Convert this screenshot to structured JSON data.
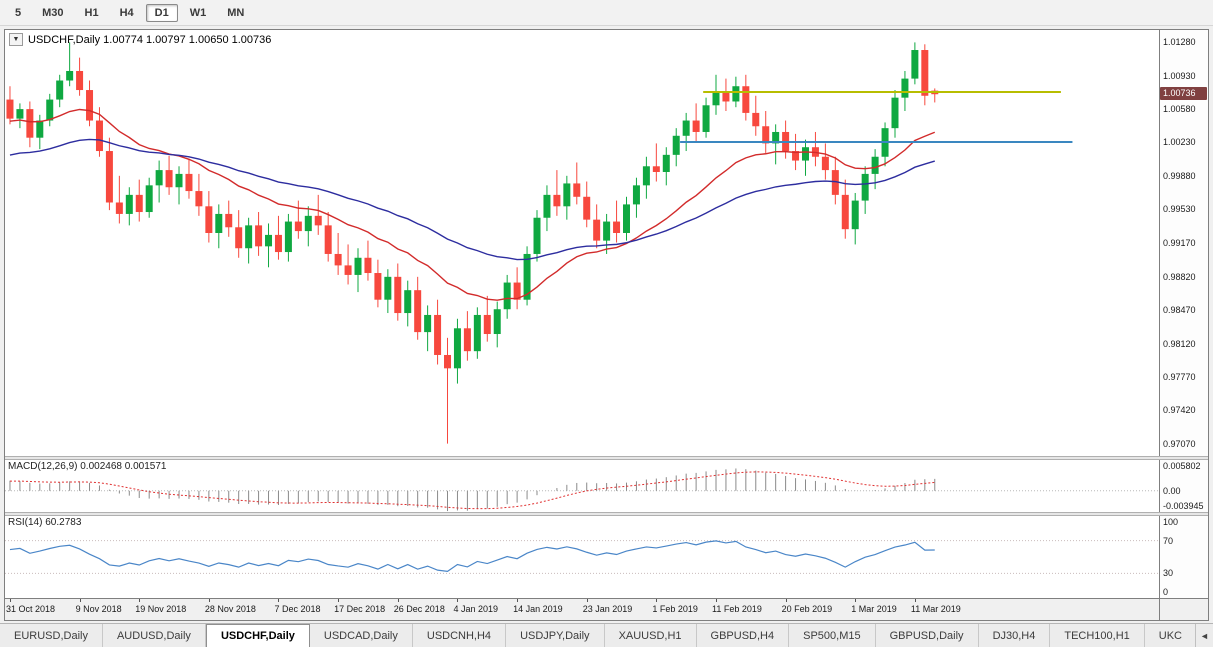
{
  "toolbar": {
    "timeframes": [
      {
        "label": "5",
        "active": false
      },
      {
        "label": "M30",
        "active": false
      },
      {
        "label": "H1",
        "active": false
      },
      {
        "label": "H4",
        "active": false
      },
      {
        "label": "D1",
        "active": true
      },
      {
        "label": "W1",
        "active": false
      },
      {
        "label": "MN",
        "active": false
      }
    ]
  },
  "chart_header": {
    "dropdown_icon": "▼",
    "text": "USDCHF,Daily 1.00774 1.00797 1.00650 1.00736"
  },
  "price_scale": {
    "ticks": [
      "1.01280",
      "1.00930",
      "1.00580",
      "1.00230",
      "0.99880",
      "0.99530",
      "0.99170",
      "0.98820",
      "0.98470",
      "0.98120",
      "0.97770",
      "0.97420",
      "0.97070"
    ],
    "current_price": "1.00736",
    "tag_color": "#804040"
  },
  "macd_panel": {
    "label": "MACD(12,26,9) 0.002468 0.001571",
    "ticks": [
      "0.005802",
      "0.00",
      "-0.003945"
    ]
  },
  "rsi_panel": {
    "label": "RSI(14) 60.2783",
    "ticks": [
      "100",
      "70",
      "30",
      "0"
    ]
  },
  "time_axis": {
    "labels": [
      {
        "text": "31 Oct 2018",
        "i": 0
      },
      {
        "text": "9 Nov 2018",
        "i": 7
      },
      {
        "text": "19 Nov 2018",
        "i": 13
      },
      {
        "text": "28 Nov 2018",
        "i": 20
      },
      {
        "text": "7 Dec 2018",
        "i": 27
      },
      {
        "text": "17 Dec 2018",
        "i": 33
      },
      {
        "text": "26 Dec 2018",
        "i": 39
      },
      {
        "text": "4 Jan 2019",
        "i": 45
      },
      {
        "text": "14 Jan 2019",
        "i": 51
      },
      {
        "text": "23 Jan 2019",
        "i": 58
      },
      {
        "text": "1 Feb 2019",
        "i": 65
      },
      {
        "text": "11 Feb 2019",
        "i": 71
      },
      {
        "text": "20 Feb 2019",
        "i": 78
      },
      {
        "text": "1 Mar 2019",
        "i": 85
      },
      {
        "text": "11 Mar 2019",
        "i": 91
      }
    ]
  },
  "tabs": {
    "scroll_left_icon": "◄",
    "items": [
      {
        "label": "EURUSD,Daily",
        "active": false
      },
      {
        "label": "AUDUSD,Daily",
        "active": false
      },
      {
        "label": "USDCHF,Daily",
        "active": true
      },
      {
        "label": "USDCAD,Daily",
        "active": false
      },
      {
        "label": "USDCNH,H4",
        "active": false
      },
      {
        "label": "USDJPY,Daily",
        "active": false
      },
      {
        "label": "XAUUSD,H1",
        "active": false
      },
      {
        "label": "GBPUSD,H4",
        "active": false
      },
      {
        "label": "SP500,M15",
        "active": false
      },
      {
        "label": "GBPUSD,Daily",
        "active": false
      },
      {
        "label": "DJ30,H4",
        "active": false
      },
      {
        "label": "TECH100,H1",
        "active": false
      },
      {
        "label": "UKC",
        "active": false
      }
    ]
  },
  "chart_data": {
    "type": "candlestick",
    "symbol": "USDCHF",
    "timeframe": "Daily",
    "ohlc_current": {
      "open": 1.00774,
      "high": 1.00797,
      "low": 1.0065,
      "close": 1.00736
    },
    "ylim": [
      0.9694,
      1.0141
    ],
    "layout": {
      "data_fraction": 0.81
    },
    "colors": {
      "bull": "#0fa841",
      "bear": "#f7483e"
    },
    "candles": [
      [
        1.0068,
        1.0082,
        1.0042,
        1.0048
      ],
      [
        1.0048,
        1.0064,
        1.0038,
        1.0058
      ],
      [
        1.0058,
        1.0066,
        1.0018,
        1.0028
      ],
      [
        1.0028,
        1.0052,
        1.0016,
        1.0046
      ],
      [
        1.0046,
        1.0074,
        1.004,
        1.0068
      ],
      [
        1.0068,
        1.0094,
        1.006,
        1.0088
      ],
      [
        1.0088,
        1.0128,
        1.0082,
        1.0098
      ],
      [
        1.0098,
        1.0112,
        1.0072,
        1.0078
      ],
      [
        1.0078,
        1.0088,
        1.004,
        1.0046
      ],
      [
        1.0046,
        1.006,
        1.0008,
        1.0014
      ],
      [
        1.0014,
        1.0028,
        0.9952,
        0.996
      ],
      [
        0.996,
        0.9988,
        0.9938,
        0.9948
      ],
      [
        0.9948,
        0.9976,
        0.9936,
        0.9968
      ],
      [
        0.9968,
        0.9984,
        0.994,
        0.995
      ],
      [
        0.995,
        0.9986,
        0.9944,
        0.9978
      ],
      [
        0.9978,
        1.0004,
        0.996,
        0.9994
      ],
      [
        0.9994,
        1.0009,
        0.9968,
        0.9976
      ],
      [
        0.9976,
        0.9998,
        0.9958,
        0.999
      ],
      [
        0.999,
        1.0006,
        0.9964,
        0.9972
      ],
      [
        0.9972,
        0.999,
        0.9946,
        0.9956
      ],
      [
        0.9956,
        0.9972,
        0.9918,
        0.9928
      ],
      [
        0.9928,
        0.9958,
        0.9912,
        0.9948
      ],
      [
        0.9948,
        0.9962,
        0.9924,
        0.9934
      ],
      [
        0.9934,
        0.9952,
        0.9902,
        0.9912
      ],
      [
        0.9912,
        0.9944,
        0.9896,
        0.9936
      ],
      [
        0.9936,
        0.995,
        0.9904,
        0.9914
      ],
      [
        0.9914,
        0.9938,
        0.9892,
        0.9926
      ],
      [
        0.9926,
        0.9946,
        0.99,
        0.9908
      ],
      [
        0.9908,
        0.9948,
        0.9898,
        0.994
      ],
      [
        0.994,
        0.9962,
        0.9922,
        0.993
      ],
      [
        0.993,
        0.9956,
        0.9914,
        0.9946
      ],
      [
        0.9946,
        0.9968,
        0.9926,
        0.9936
      ],
      [
        0.9936,
        0.995,
        0.9898,
        0.9906
      ],
      [
        0.9906,
        0.9928,
        0.9884,
        0.9894
      ],
      [
        0.9894,
        0.9916,
        0.9874,
        0.9884
      ],
      [
        0.9884,
        0.9912,
        0.9866,
        0.9902
      ],
      [
        0.9902,
        0.992,
        0.9878,
        0.9886
      ],
      [
        0.9886,
        0.99,
        0.985,
        0.9858
      ],
      [
        0.9858,
        0.989,
        0.9844,
        0.9882
      ],
      [
        0.9882,
        0.9896,
        0.9836,
        0.9844
      ],
      [
        0.9844,
        0.9878,
        0.983,
        0.9868
      ],
      [
        0.9868,
        0.9882,
        0.9816,
        0.9824
      ],
      [
        0.9824,
        0.9852,
        0.9804,
        0.9842
      ],
      [
        0.9842,
        0.9858,
        0.979,
        0.98
      ],
      [
        0.98,
        0.9818,
        0.9707,
        0.9786
      ],
      [
        0.9786,
        0.9838,
        0.977,
        0.9828
      ],
      [
        0.9828,
        0.9846,
        0.9794,
        0.9804
      ],
      [
        0.9804,
        0.985,
        0.9796,
        0.9842
      ],
      [
        0.9842,
        0.9862,
        0.9814,
        0.9822
      ],
      [
        0.9822,
        0.9856,
        0.9808,
        0.9848
      ],
      [
        0.9848,
        0.9884,
        0.9838,
        0.9876
      ],
      [
        0.9876,
        0.9892,
        0.9848,
        0.9858
      ],
      [
        0.9858,
        0.9914,
        0.9852,
        0.9906
      ],
      [
        0.9906,
        0.9952,
        0.9898,
        0.9944
      ],
      [
        0.9944,
        0.9978,
        0.993,
        0.9968
      ],
      [
        0.9968,
        0.9994,
        0.9946,
        0.9956
      ],
      [
        0.9956,
        0.9988,
        0.9942,
        0.998
      ],
      [
        0.998,
        1.0002,
        0.9958,
        0.9966
      ],
      [
        0.9966,
        0.9982,
        0.9934,
        0.9942
      ],
      [
        0.9942,
        0.9958,
        0.9912,
        0.992
      ],
      [
        0.992,
        0.9948,
        0.9906,
        0.994
      ],
      [
        0.994,
        0.9962,
        0.9918,
        0.9928
      ],
      [
        0.9928,
        0.9966,
        0.992,
        0.9958
      ],
      [
        0.9958,
        0.9986,
        0.9944,
        0.9978
      ],
      [
        0.9978,
        1.0008,
        0.9964,
        0.9998
      ],
      [
        0.9998,
        1.0022,
        0.9982,
        0.9992
      ],
      [
        0.9992,
        1.0018,
        0.9978,
        1.001
      ],
      [
        1.001,
        1.0038,
        0.9998,
        1.003
      ],
      [
        1.003,
        1.0054,
        1.0014,
        1.0046
      ],
      [
        1.0046,
        1.0064,
        1.0024,
        1.0034
      ],
      [
        1.0034,
        1.007,
        1.0028,
        1.0062
      ],
      [
        1.0062,
        1.0094,
        1.0052,
        1.0076
      ],
      [
        1.0076,
        1.009,
        1.0056,
        1.0066
      ],
      [
        1.0066,
        1.0092,
        1.006,
        1.0082
      ],
      [
        1.0082,
        1.0094,
        1.0046,
        1.0054
      ],
      [
        1.0054,
        1.0072,
        1.003,
        1.004
      ],
      [
        1.004,
        1.0056,
        1.0012,
        1.0022
      ],
      [
        1.0022,
        1.0042,
        1.0,
        1.0034
      ],
      [
        1.0034,
        1.0046,
        1.0006,
        1.0014
      ],
      [
        1.0014,
        1.0032,
        0.9994,
        1.0004
      ],
      [
        1.0004,
        1.0026,
        0.9988,
        1.0018
      ],
      [
        1.0018,
        1.0034,
        0.9998,
        1.0008
      ],
      [
        1.0008,
        1.0022,
        0.9984,
        0.9994
      ],
      [
        0.9994,
        1.0008,
        0.9958,
        0.9968
      ],
      [
        0.9968,
        0.9984,
        0.9922,
        0.9932
      ],
      [
        0.9932,
        0.997,
        0.9916,
        0.9962
      ],
      [
        0.9962,
        0.9998,
        0.9948,
        0.999
      ],
      [
        0.999,
        1.0016,
        0.9974,
        1.0008
      ],
      [
        1.0008,
        1.0044,
        0.9998,
        1.0038
      ],
      [
        1.0038,
        1.0078,
        1.0028,
        1.007
      ],
      [
        1.007,
        1.0098,
        1.0056,
        1.009
      ],
      [
        1.009,
        1.0128,
        1.0084,
        1.012
      ],
      [
        1.012,
        1.0126,
        1.0062,
        1.0072
      ],
      [
        1.00774,
        1.00797,
        1.0065,
        1.00736
      ]
    ],
    "overlays": [
      {
        "name": "ma-fast-red",
        "period": 20,
        "seed": 1.0045,
        "color": "#d22b2b",
        "width": 1.4
      },
      {
        "name": "ma-slow-blue",
        "period": 45,
        "seed": 1.0008,
        "color": "#2d2d9f",
        "width": 1.4
      }
    ],
    "hlines": [
      {
        "name": "resistance-line",
        "price": 1.0076,
        "color": "#b7bd00",
        "width": 2,
        "from": 0.605,
        "to": 0.915
      },
      {
        "name": "support-line",
        "price": 1.00235,
        "color": "#3a87c0",
        "width": 2,
        "from": 0.585,
        "to": 0.925
      }
    ],
    "macd": {
      "params": [
        12,
        26,
        9
      ],
      "ylim": [
        -0.0042,
        0.0061
      ],
      "seeds": {
        "ema_fast": 1.0052,
        "ema_slow": 1.003,
        "signal": 0.0019
      },
      "current": {
        "macd": 0.002468,
        "signal": 0.001571
      },
      "bar_color": "#8a8a8a",
      "signal_color": "#e03030",
      "zero_line_color": "#b8b8b8"
    },
    "rsi": {
      "period": 14,
      "ylim": [
        0,
        100
      ],
      "levels": [
        70,
        30
      ],
      "seeds": {
        "gain": 0.0013,
        "loss": 0.0009
      },
      "current": 60.2783,
      "line_color": "#4a86c8",
      "level_color": "#c9bcbc"
    }
  }
}
